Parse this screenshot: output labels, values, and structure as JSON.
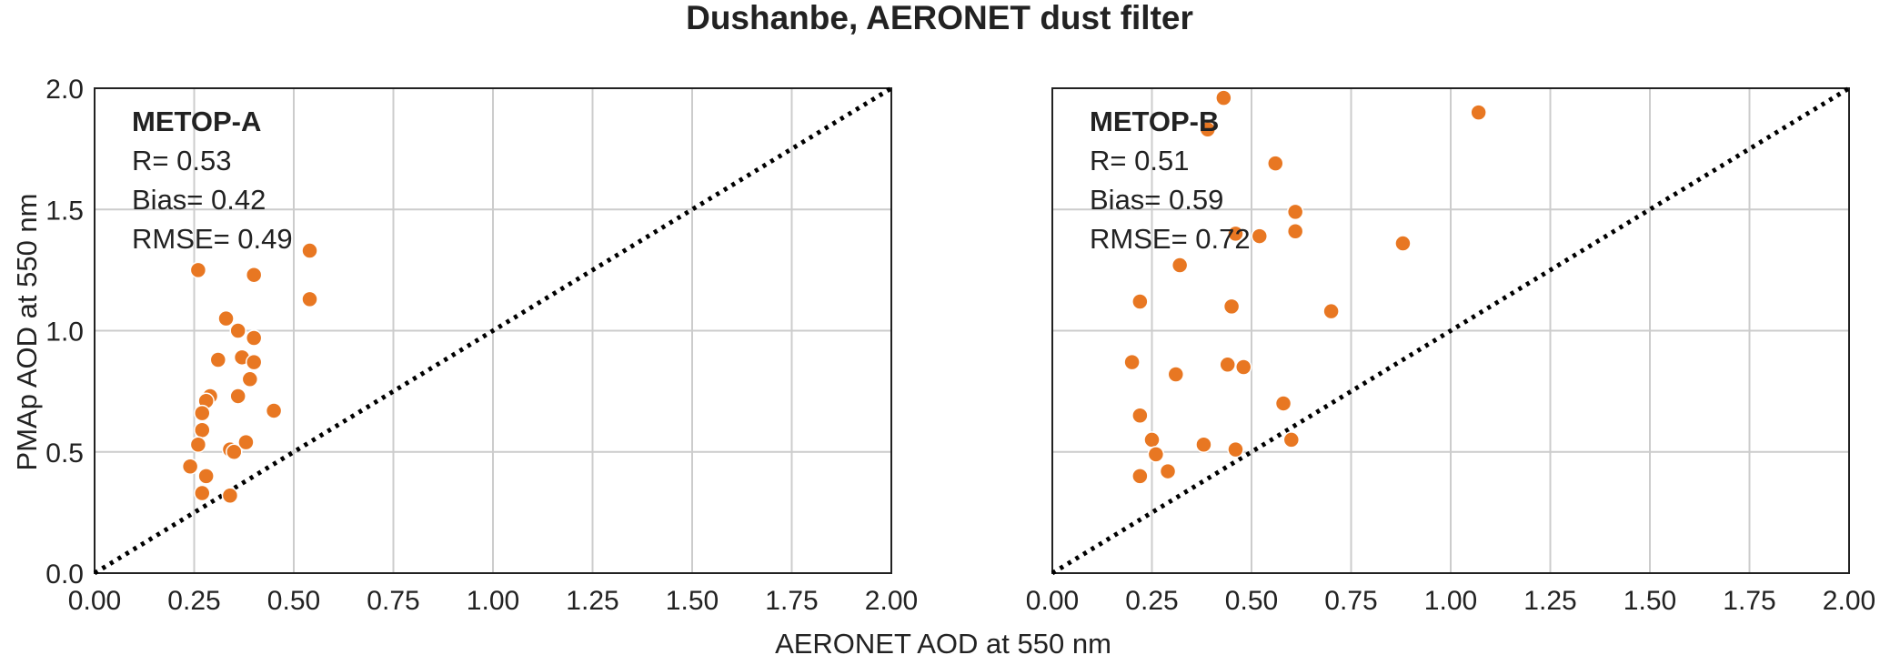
{
  "figure": {
    "title": "Dushanbe, AERONET dust filter",
    "xlabel": "AERONET AOD at 550 nm",
    "ylabel": "PMAp AOD at 550 nm"
  },
  "colors": {
    "marker": "#e87722",
    "grid": "#cccccc",
    "axis": "#222222",
    "reference_line": "#000000"
  },
  "chart_data": [
    {
      "type": "scatter",
      "title": "",
      "panel_label": "METOP-A",
      "stats": [
        "R= 0.53",
        "Bias= 0.42",
        "RMSE= 0.49"
      ],
      "xlim": [
        0,
        2
      ],
      "ylim": [
        0,
        2
      ],
      "xticks": [
        "0.00",
        "0.25",
        "0.50",
        "0.75",
        "1.00",
        "1.25",
        "1.50",
        "1.75",
        "2.00"
      ],
      "xtick_values": [
        0,
        0.25,
        0.5,
        0.75,
        1.0,
        1.25,
        1.5,
        1.75,
        2.0
      ],
      "yticks": [
        "0.0",
        "0.5",
        "1.0",
        "1.5",
        "2.0"
      ],
      "ytick_values": [
        0,
        0.5,
        1.0,
        1.5,
        2.0
      ],
      "grid": true,
      "reference_line": "1:1 dotted",
      "points": [
        {
          "x": 0.26,
          "y": 1.25
        },
        {
          "x": 0.4,
          "y": 1.23
        },
        {
          "x": 0.54,
          "y": 1.33
        },
        {
          "x": 0.54,
          "y": 1.13
        },
        {
          "x": 0.33,
          "y": 1.05
        },
        {
          "x": 0.36,
          "y": 1.0
        },
        {
          "x": 0.4,
          "y": 0.97
        },
        {
          "x": 0.31,
          "y": 0.88
        },
        {
          "x": 0.37,
          "y": 0.89
        },
        {
          "x": 0.4,
          "y": 0.87
        },
        {
          "x": 0.39,
          "y": 0.8
        },
        {
          "x": 0.36,
          "y": 0.73
        },
        {
          "x": 0.29,
          "y": 0.73
        },
        {
          "x": 0.28,
          "y": 0.71
        },
        {
          "x": 0.27,
          "y": 0.66
        },
        {
          "x": 0.45,
          "y": 0.67
        },
        {
          "x": 0.27,
          "y": 0.59
        },
        {
          "x": 0.26,
          "y": 0.53
        },
        {
          "x": 0.38,
          "y": 0.54
        },
        {
          "x": 0.34,
          "y": 0.51
        },
        {
          "x": 0.35,
          "y": 0.5
        },
        {
          "x": 0.24,
          "y": 0.44
        },
        {
          "x": 0.28,
          "y": 0.4
        },
        {
          "x": 0.27,
          "y": 0.33
        },
        {
          "x": 0.34,
          "y": 0.32
        }
      ]
    },
    {
      "type": "scatter",
      "title": "",
      "panel_label": "METOP-B",
      "stats": [
        "R= 0.51",
        "Bias= 0.59",
        "RMSE= 0.72"
      ],
      "xlim": [
        0,
        2
      ],
      "ylim": [
        0,
        2
      ],
      "xticks": [
        "0.00",
        "0.25",
        "0.50",
        "0.75",
        "1.00",
        "1.25",
        "1.50",
        "1.75",
        "2.00"
      ],
      "xtick_values": [
        0,
        0.25,
        0.5,
        0.75,
        1.0,
        1.25,
        1.5,
        1.75,
        2.0
      ],
      "yticks": [],
      "ytick_values": [
        0,
        0.5,
        1.0,
        1.5,
        2.0
      ],
      "grid": true,
      "reference_line": "1:1 dotted",
      "points": [
        {
          "x": 0.43,
          "y": 1.96
        },
        {
          "x": 1.07,
          "y": 1.9
        },
        {
          "x": 0.39,
          "y": 1.83
        },
        {
          "x": 0.56,
          "y": 1.69
        },
        {
          "x": 0.61,
          "y": 1.49
        },
        {
          "x": 0.61,
          "y": 1.41
        },
        {
          "x": 0.46,
          "y": 1.4
        },
        {
          "x": 0.52,
          "y": 1.39
        },
        {
          "x": 0.88,
          "y": 1.36
        },
        {
          "x": 0.32,
          "y": 1.27
        },
        {
          "x": 0.22,
          "y": 1.12
        },
        {
          "x": 0.45,
          "y": 1.1
        },
        {
          "x": 0.7,
          "y": 1.08
        },
        {
          "x": 0.2,
          "y": 0.87
        },
        {
          "x": 0.44,
          "y": 0.86
        },
        {
          "x": 0.48,
          "y": 0.85
        },
        {
          "x": 0.31,
          "y": 0.82
        },
        {
          "x": 0.58,
          "y": 0.7
        },
        {
          "x": 0.22,
          "y": 0.65
        },
        {
          "x": 0.25,
          "y": 0.55
        },
        {
          "x": 0.6,
          "y": 0.55
        },
        {
          "x": 0.38,
          "y": 0.53
        },
        {
          "x": 0.46,
          "y": 0.51
        },
        {
          "x": 0.26,
          "y": 0.49
        },
        {
          "x": 0.29,
          "y": 0.42
        },
        {
          "x": 0.22,
          "y": 0.4
        }
      ]
    }
  ]
}
